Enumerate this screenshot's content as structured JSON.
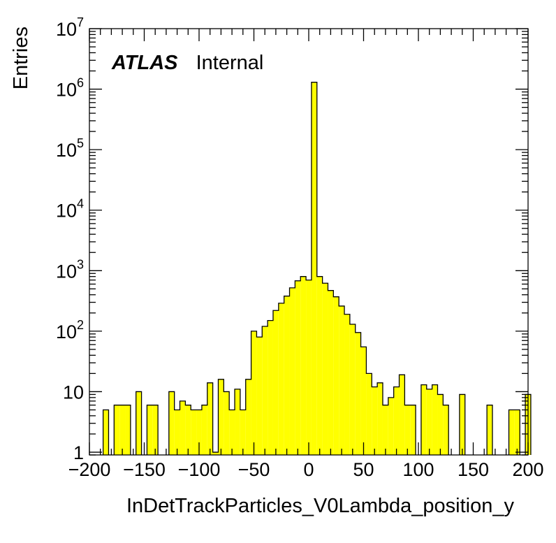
{
  "chart_data": {
    "type": "bar",
    "title": "",
    "xlabel": "InDetTrackParticles_V0Lambda_position_y",
    "ylabel": "Entries",
    "xlim": [
      -200,
      200
    ],
    "ylim": [
      0.9,
      10000000
    ],
    "log_y": true,
    "grid": false,
    "fill_color": "#ffff00",
    "line_color": "#000000",
    "bin_width": 5,
    "x_ticks": [
      "−200",
      "−150",
      "−100",
      "−50",
      "0",
      "50",
      "100",
      "150",
      "200"
    ],
    "x_tick_values": [
      -200,
      -150,
      -100,
      -50,
      0,
      50,
      100,
      150,
      200
    ],
    "y_ticks": [
      {
        "value": 1,
        "base": "1",
        "exp": ""
      },
      {
        "value": 10,
        "base": "10",
        "exp": ""
      },
      {
        "value": 100,
        "base": "10",
        "exp": "2"
      },
      {
        "value": 1000,
        "base": "10",
        "exp": "3"
      },
      {
        "value": 10000,
        "base": "10",
        "exp": "4"
      },
      {
        "value": 100000,
        "base": "10",
        "exp": "5"
      },
      {
        "value": 1000000,
        "base": "10",
        "exp": "6"
      },
      {
        "value": 10000000,
        "base": "10",
        "exp": "7"
      }
    ],
    "annotation": {
      "bold": "ATLAS",
      "normal": "Internal"
    },
    "bins": [
      {
        "x": -185,
        "y": 5
      },
      {
        "x": -175,
        "y": 6
      },
      {
        "x": -170,
        "y": 6
      },
      {
        "x": -165,
        "y": 6
      },
      {
        "x": -155,
        "y": 10
      },
      {
        "x": -145,
        "y": 6
      },
      {
        "x": -140,
        "y": 6
      },
      {
        "x": -125,
        "y": 10
      },
      {
        "x": -120,
        "y": 5
      },
      {
        "x": -115,
        "y": 7
      },
      {
        "x": -110,
        "y": 6
      },
      {
        "x": -105,
        "y": 5
      },
      {
        "x": -100,
        "y": 5
      },
      {
        "x": -95,
        "y": 6
      },
      {
        "x": -90,
        "y": 14
      },
      {
        "x": -85,
        "y": 1
      },
      {
        "x": -80,
        "y": 16
      },
      {
        "x": -75,
        "y": 10
      },
      {
        "x": -70,
        "y": 5
      },
      {
        "x": -65,
        "y": 11
      },
      {
        "x": -60,
        "y": 5
      },
      {
        "x": -55,
        "y": 16
      },
      {
        "x": -50,
        "y": 100
      },
      {
        "x": -45,
        "y": 80
      },
      {
        "x": -40,
        "y": 120
      },
      {
        "x": -35,
        "y": 150
      },
      {
        "x": -30,
        "y": 220
      },
      {
        "x": -25,
        "y": 290
      },
      {
        "x": -20,
        "y": 380
      },
      {
        "x": -15,
        "y": 520
      },
      {
        "x": -10,
        "y": 680
      },
      {
        "x": -5,
        "y": 800
      },
      {
        "x": 0,
        "y": 700
      },
      {
        "x": 5,
        "y": 1300000
      },
      {
        "x": 10,
        "y": 800
      },
      {
        "x": 15,
        "y": 620
      },
      {
        "x": 20,
        "y": 470
      },
      {
        "x": 25,
        "y": 370
      },
      {
        "x": 30,
        "y": 260
      },
      {
        "x": 35,
        "y": 190
      },
      {
        "x": 40,
        "y": 130
      },
      {
        "x": 45,
        "y": 95
      },
      {
        "x": 50,
        "y": 55
      },
      {
        "x": 55,
        "y": 20
      },
      {
        "x": 60,
        "y": 12
      },
      {
        "x": 65,
        "y": 14
      },
      {
        "x": 70,
        "y": 6
      },
      {
        "x": 75,
        "y": 8
      },
      {
        "x": 80,
        "y": 12
      },
      {
        "x": 85,
        "y": 19
      },
      {
        "x": 90,
        "y": 6
      },
      {
        "x": 95,
        "y": 6
      },
      {
        "x": 105,
        "y": 13
      },
      {
        "x": 110,
        "y": 11
      },
      {
        "x": 115,
        "y": 13
      },
      {
        "x": 120,
        "y": 9
      },
      {
        "x": 125,
        "y": 6
      },
      {
        "x": 140,
        "y": 9
      },
      {
        "x": 165,
        "y": 6
      },
      {
        "x": 185,
        "y": 5
      },
      {
        "x": 190,
        "y": 5
      },
      {
        "x": 200,
        "y": 9
      }
    ]
  }
}
